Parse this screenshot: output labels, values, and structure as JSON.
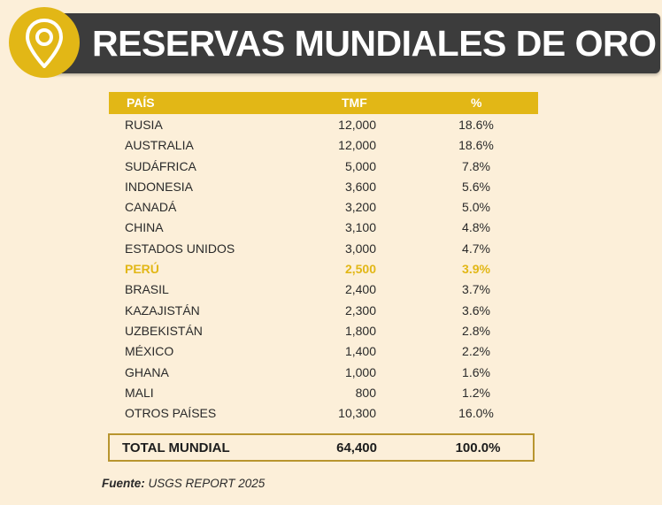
{
  "header": {
    "title": "RESERVAS MUNDIALES DE ORO",
    "icon": "location-pin-icon"
  },
  "colors": {
    "accent": "#e2b716",
    "dark_bar": "#3c3c3c",
    "background": "#fcefd9"
  },
  "table": {
    "columns": {
      "country": "PAÍS",
      "tmf": "TMF",
      "pct": "%"
    },
    "rows": [
      {
        "country": "RUSIA",
        "tmf": "12,000",
        "pct": "18.6%"
      },
      {
        "country": "AUSTRALIA",
        "tmf": "12,000",
        "pct": "18.6%"
      },
      {
        "country": "SUDÁFRICA",
        "tmf": "5,000",
        "pct": "7.8%"
      },
      {
        "country": "INDONESIA",
        "tmf": "3,600",
        "pct": "5.6%"
      },
      {
        "country": "CANADÁ",
        "tmf": "3,200",
        "pct": "5.0%"
      },
      {
        "country": "CHINA",
        "tmf": "3,100",
        "pct": "4.8%"
      },
      {
        "country": "ESTADOS UNIDOS",
        "tmf": "3,000",
        "pct": "4.7%"
      },
      {
        "country": "PERÚ",
        "tmf": "2,500",
        "pct": "3.9%",
        "highlight": true
      },
      {
        "country": "BRASIL",
        "tmf": "2,400",
        "pct": "3.7%"
      },
      {
        "country": "KAZAJISTÁN",
        "tmf": "2,300",
        "pct": "3.6%"
      },
      {
        "country": "UZBEKISTÁN",
        "tmf": "1,800",
        "pct": "2.8%"
      },
      {
        "country": "MÉXICO",
        "tmf": "1,400",
        "pct": "2.2%"
      },
      {
        "country": "GHANA",
        "tmf": "1,000",
        "pct": "1.6%"
      },
      {
        "country": "MALI",
        "tmf": "800",
        "pct": "1.2%"
      },
      {
        "country": "OTROS PAÍSES",
        "tmf": "10,300",
        "pct": "16.0%"
      }
    ],
    "total": {
      "label": "TOTAL MUNDIAL",
      "tmf": "64,400",
      "pct": "100.0%"
    }
  },
  "source": {
    "label": "Fuente:",
    "text": "USGS REPORT 2025"
  },
  "chart_data": {
    "type": "table",
    "title": "RESERVAS MUNDIALES DE ORO",
    "columns": [
      "PAÍS",
      "TMF",
      "%"
    ],
    "categories": [
      "RUSIA",
      "AUSTRALIA",
      "SUDÁFRICA",
      "INDONESIA",
      "CANADÁ",
      "CHINA",
      "ESTADOS UNIDOS",
      "PERÚ",
      "BRASIL",
      "KAZAJISTÁN",
      "UZBEKISTÁN",
      "MÉXICO",
      "GHANA",
      "MALI",
      "OTROS PAÍSES"
    ],
    "series": [
      {
        "name": "TMF",
        "values": [
          12000,
          12000,
          5000,
          3600,
          3200,
          3100,
          3000,
          2500,
          2400,
          2300,
          1800,
          1400,
          1000,
          800,
          10300
        ]
      },
      {
        "name": "%",
        "values": [
          18.6,
          18.6,
          7.8,
          5.6,
          5.0,
          4.8,
          4.7,
          3.9,
          3.7,
          3.6,
          2.8,
          2.2,
          1.6,
          1.2,
          16.0
        ]
      }
    ],
    "total": {
      "TMF": 64400,
      "%": 100.0
    },
    "highlighted_category": "PERÚ"
  }
}
